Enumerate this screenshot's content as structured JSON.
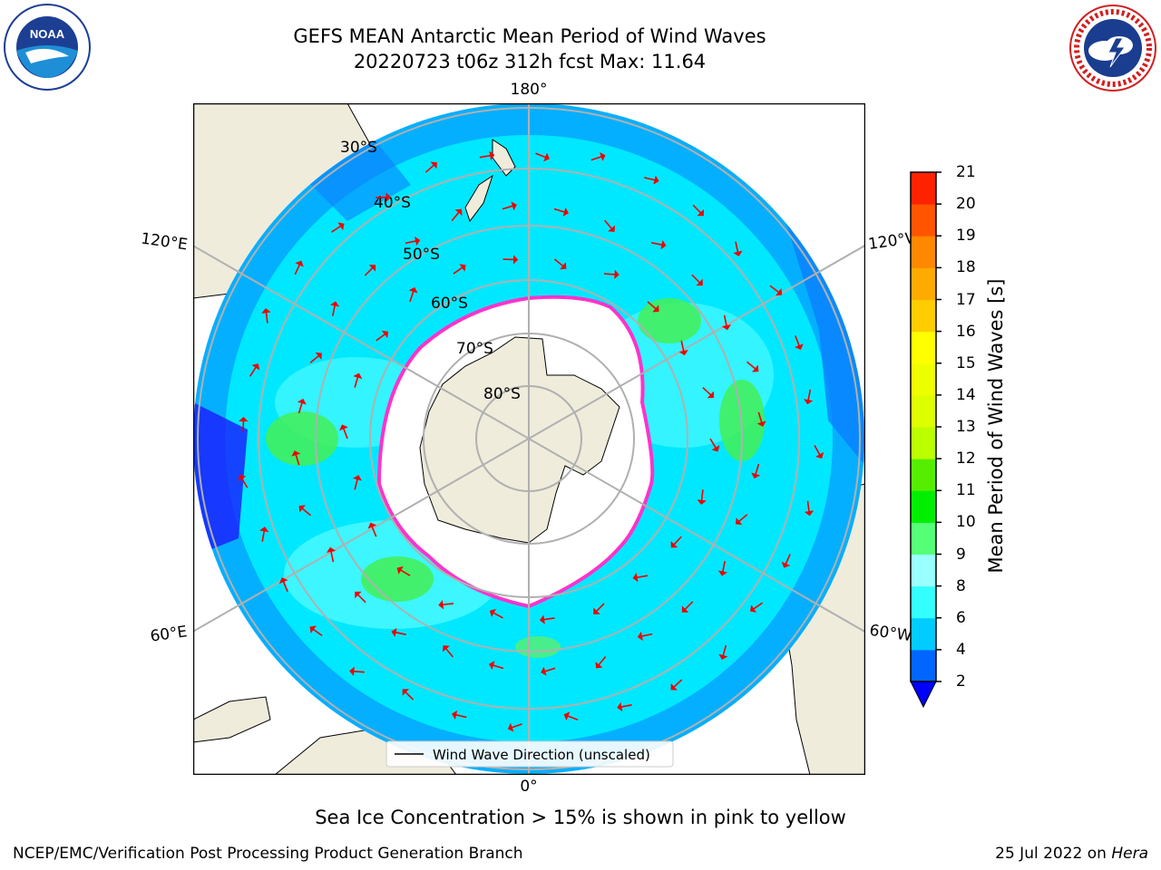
{
  "title": {
    "line1": "GEFS MEAN Antarctic Mean Period of Wind Waves",
    "line2": "20220723 t06z 312h fcst   Max: 11.64"
  },
  "logos": {
    "left": {
      "icon": "noaa-logo-icon",
      "text": "NOAA"
    },
    "right": {
      "icon": "nws-logo-icon",
      "text": "NATIONAL WEATHER SERVICE"
    }
  },
  "map": {
    "projection": "south-polar-stereographic",
    "longitude_labels": {
      "top": "180°",
      "bottom": "0°",
      "upper_left": "120°E",
      "lower_left": "60°E",
      "upper_right": "120°W",
      "lower_right": "60°W"
    },
    "latitude_labels": [
      "30°S",
      "40°S",
      "50°S",
      "60°S",
      "70°S",
      "80°S"
    ],
    "legend_label": "Wind Wave Direction (unscaled)"
  },
  "colorbar": {
    "label": "Mean Period of Wind Waves [s]",
    "ticks": [
      "2",
      "4",
      "6",
      "8",
      "9",
      "10",
      "11",
      "12",
      "13",
      "14",
      "15",
      "16",
      "17",
      "18",
      "19",
      "20",
      "21"
    ],
    "colors": [
      "#0066ff",
      "#00ccff",
      "#33ffff",
      "#99ffff",
      "#55ff77",
      "#00ee00",
      "#55ee00",
      "#bbff00",
      "#ddff00",
      "#eeff00",
      "#ffff00",
      "#ffcc00",
      "#ffaa00",
      "#ff8800",
      "#ff5500",
      "#ff2200"
    ],
    "under_color": "#0000ff"
  },
  "caption": "Sea Ice Concentration > 15% is shown in pink to yellow",
  "footer": {
    "left": "NCEP/EMC/Verification Post Processing Product Generation Branch",
    "right_prefix": "25 Jul 2022 on ",
    "right_italic": "Hera"
  }
}
